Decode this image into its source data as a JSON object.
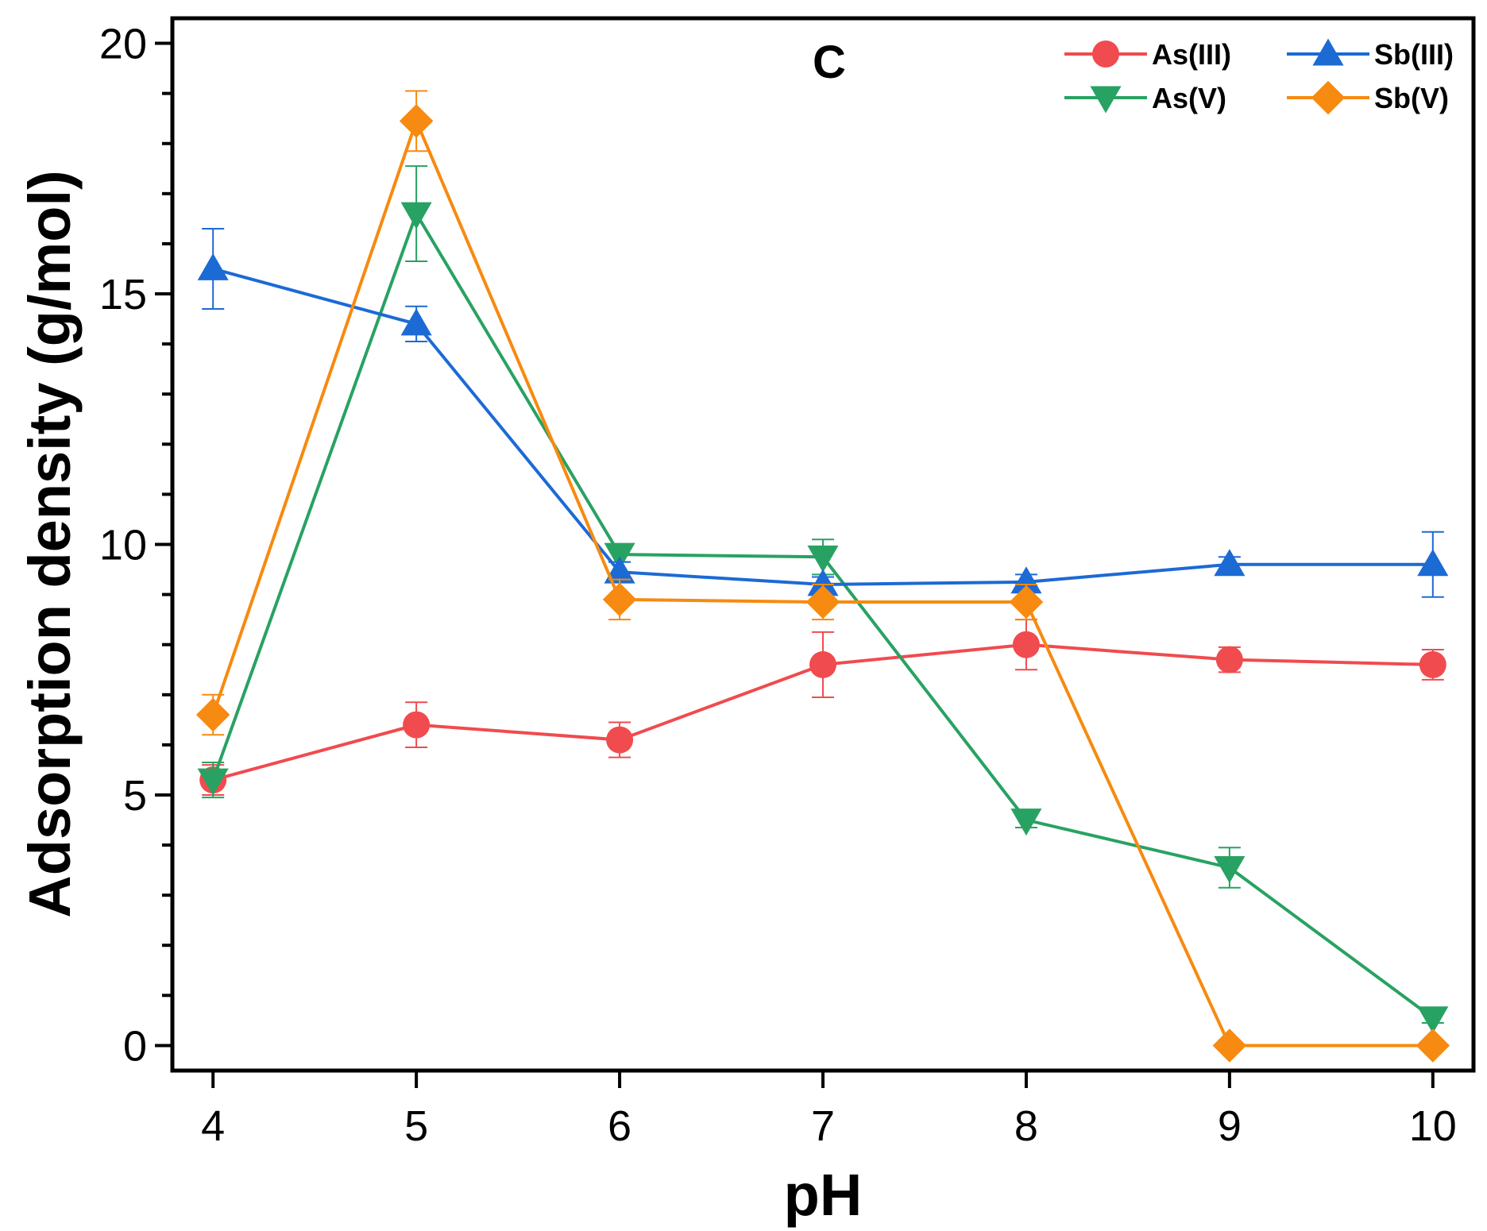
{
  "chart_data": {
    "type": "line",
    "panel_label": "C",
    "xlabel": "pH",
    "ylabel": "Adsorption density (g/mol)",
    "xlim": [
      3.8,
      10.2
    ],
    "ylim": [
      -0.5,
      20.5
    ],
    "xticks": [
      4,
      5,
      6,
      7,
      8,
      9,
      10
    ],
    "yticks": [
      0,
      5,
      10,
      15,
      20
    ],
    "y_minor_step": 1,
    "legend_position": "top-right",
    "x": [
      4,
      5,
      6,
      7,
      8,
      9,
      10
    ],
    "series": [
      {
        "name": "As(III)",
        "color": "#f04b4f",
        "marker": "circle",
        "values": [
          5.3,
          6.4,
          6.1,
          7.6,
          8.0,
          7.7,
          7.6
        ],
        "errors": [
          0.3,
          0.45,
          0.35,
          0.65,
          0.5,
          0.25,
          0.3
        ]
      },
      {
        "name": "As(V)",
        "color": "#28a262",
        "marker": "triangle-down",
        "values": [
          5.3,
          16.6,
          9.8,
          9.75,
          4.5,
          3.55,
          0.55
        ],
        "errors": [
          0.35,
          0.95,
          0.15,
          0.35,
          0.15,
          0.4,
          0.1
        ]
      },
      {
        "name": "Sb(III)",
        "color": "#1c6ad4",
        "marker": "triangle-up",
        "values": [
          15.5,
          14.4,
          9.45,
          9.2,
          9.25,
          9.6,
          9.6
        ],
        "errors": [
          0.8,
          0.35,
          0.2,
          0.15,
          0.15,
          0.15,
          0.65
        ]
      },
      {
        "name": "Sb(V)",
        "color": "#f78a10",
        "marker": "diamond",
        "values": [
          6.6,
          18.45,
          8.9,
          8.85,
          8.85,
          0.0,
          0.0
        ],
        "errors": [
          0.4,
          0.6,
          0.4,
          0.35,
          0.35,
          0.0,
          0.0
        ]
      }
    ]
  }
}
